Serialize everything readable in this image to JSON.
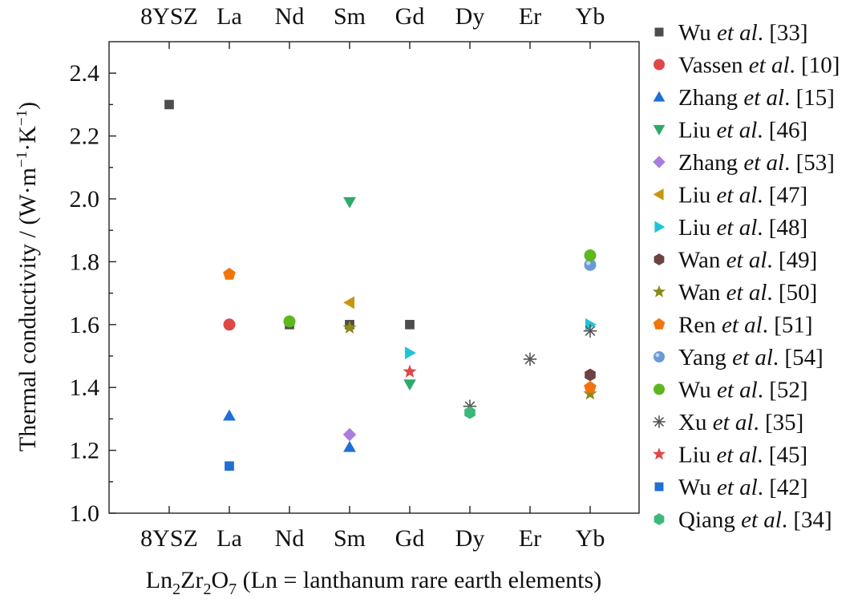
{
  "chart_data": {
    "type": "scatter",
    "categories": [
      "8YSZ",
      "La",
      "Nd",
      "Sm",
      "Gd",
      "Dy",
      "Er",
      "Yb"
    ],
    "ylim": [
      1.0,
      2.5
    ],
    "yticks": [
      "1.0",
      "1.2",
      "1.4",
      "1.6",
      "1.8",
      "2.0",
      "2.2",
      "2.4"
    ],
    "ylabel_main": "Thermal conductivity / (W",
    "ylabel_m": "m",
    "ylabel_sup1": "−1",
    "ylabel_k": "K",
    "ylabel_sup2": "−1",
    "ylabel_close": ")",
    "xlabel_ln": "Ln",
    "xlabel_sub1": "2",
    "xlabel_zr": "Zr",
    "xlabel_sub2": "2",
    "xlabel_o": "O",
    "xlabel_sub3": "7",
    "xlabel_rest": " (Ln = lanthanum rare earth elements)",
    "grid": false,
    "legend_position": "right",
    "series": [
      {
        "name": "Wu",
        "ref": "[33]",
        "color": "#4d4d4d",
        "marker": "square",
        "points": [
          {
            "x": "8YSZ",
            "y": 2.3
          },
          {
            "x": "Nd",
            "y": 1.6
          },
          {
            "x": "Sm",
            "y": 1.6
          },
          {
            "x": "Gd",
            "y": 1.6
          }
        ]
      },
      {
        "name": "Vassen",
        "ref": "[10]",
        "color": "#e04848",
        "marker": "circle",
        "points": [
          {
            "x": "La",
            "y": 1.6
          }
        ]
      },
      {
        "name": "Zhang",
        "ref": "[15]",
        "color": "#1f6fd6",
        "marker": "triangle-up",
        "points": [
          {
            "x": "La",
            "y": 1.31
          },
          {
            "x": "Sm",
            "y": 1.21
          }
        ]
      },
      {
        "name": "Liu",
        "ref": "[46]",
        "color": "#2eaa6a",
        "marker": "triangle-down",
        "points": [
          {
            "x": "Sm",
            "y": 1.99
          },
          {
            "x": "Gd",
            "y": 1.41
          }
        ]
      },
      {
        "name": "Zhang",
        "ref": "[53]",
        "color": "#a97de0",
        "marker": "diamond",
        "points": [
          {
            "x": "Sm",
            "y": 1.25
          }
        ]
      },
      {
        "name": "Liu",
        "ref": "[47]",
        "color": "#c8950f",
        "marker": "triangle-left",
        "points": [
          {
            "x": "Sm",
            "y": 1.67
          }
        ]
      },
      {
        "name": "Liu",
        "ref": "[48]",
        "color": "#1ec4d8",
        "marker": "triangle-right",
        "points": [
          {
            "x": "Gd",
            "y": 1.51
          },
          {
            "x": "Yb",
            "y": 1.6
          }
        ]
      },
      {
        "name": "Wan",
        "ref": "[49]",
        "color": "#6e4240",
        "marker": "hexagon",
        "points": [
          {
            "x": "Yb",
            "y": 1.44
          }
        ]
      },
      {
        "name": "Wan",
        "ref": "[50]",
        "color": "#8a8a18",
        "marker": "star",
        "points": [
          {
            "x": "Sm",
            "y": 1.59
          },
          {
            "x": "Yb",
            "y": 1.38
          }
        ]
      },
      {
        "name": "Ren",
        "ref": "[51]",
        "color": "#f2740f",
        "marker": "pentagon",
        "points": [
          {
            "x": "La",
            "y": 1.76
          },
          {
            "x": "Yb",
            "y": 1.4
          }
        ]
      },
      {
        "name": "Yang",
        "ref": "[54]",
        "color": "#6a9ad8",
        "marker": "sphere",
        "points": [
          {
            "x": "Yb",
            "y": 1.79
          }
        ]
      },
      {
        "name": "Wu",
        "ref": "[52]",
        "color": "#5cb81e",
        "marker": "circle",
        "points": [
          {
            "x": "Nd",
            "y": 1.61
          },
          {
            "x": "Yb",
            "y": 1.82
          }
        ]
      },
      {
        "name": "Xu",
        "ref": "[35]",
        "color": "#555555",
        "marker": "asterisk",
        "points": [
          {
            "x": "Dy",
            "y": 1.34
          },
          {
            "x": "Er",
            "y": 1.49
          },
          {
            "x": "Yb",
            "y": 1.58
          }
        ]
      },
      {
        "name": "Liu",
        "ref": "[45]",
        "color": "#e04848",
        "marker": "star",
        "points": [
          {
            "x": "Gd",
            "y": 1.45
          }
        ]
      },
      {
        "name": "Wu",
        "ref": "[42]",
        "color": "#1f6fd6",
        "marker": "square",
        "points": [
          {
            "x": "La",
            "y": 1.15
          }
        ]
      },
      {
        "name": "Qiang",
        "ref": "[34]",
        "color": "#3cb878",
        "marker": "hexagon",
        "points": [
          {
            "x": "Dy",
            "y": 1.32
          }
        ]
      }
    ]
  },
  "legend_etal": "et al",
  "legend_dot": "."
}
